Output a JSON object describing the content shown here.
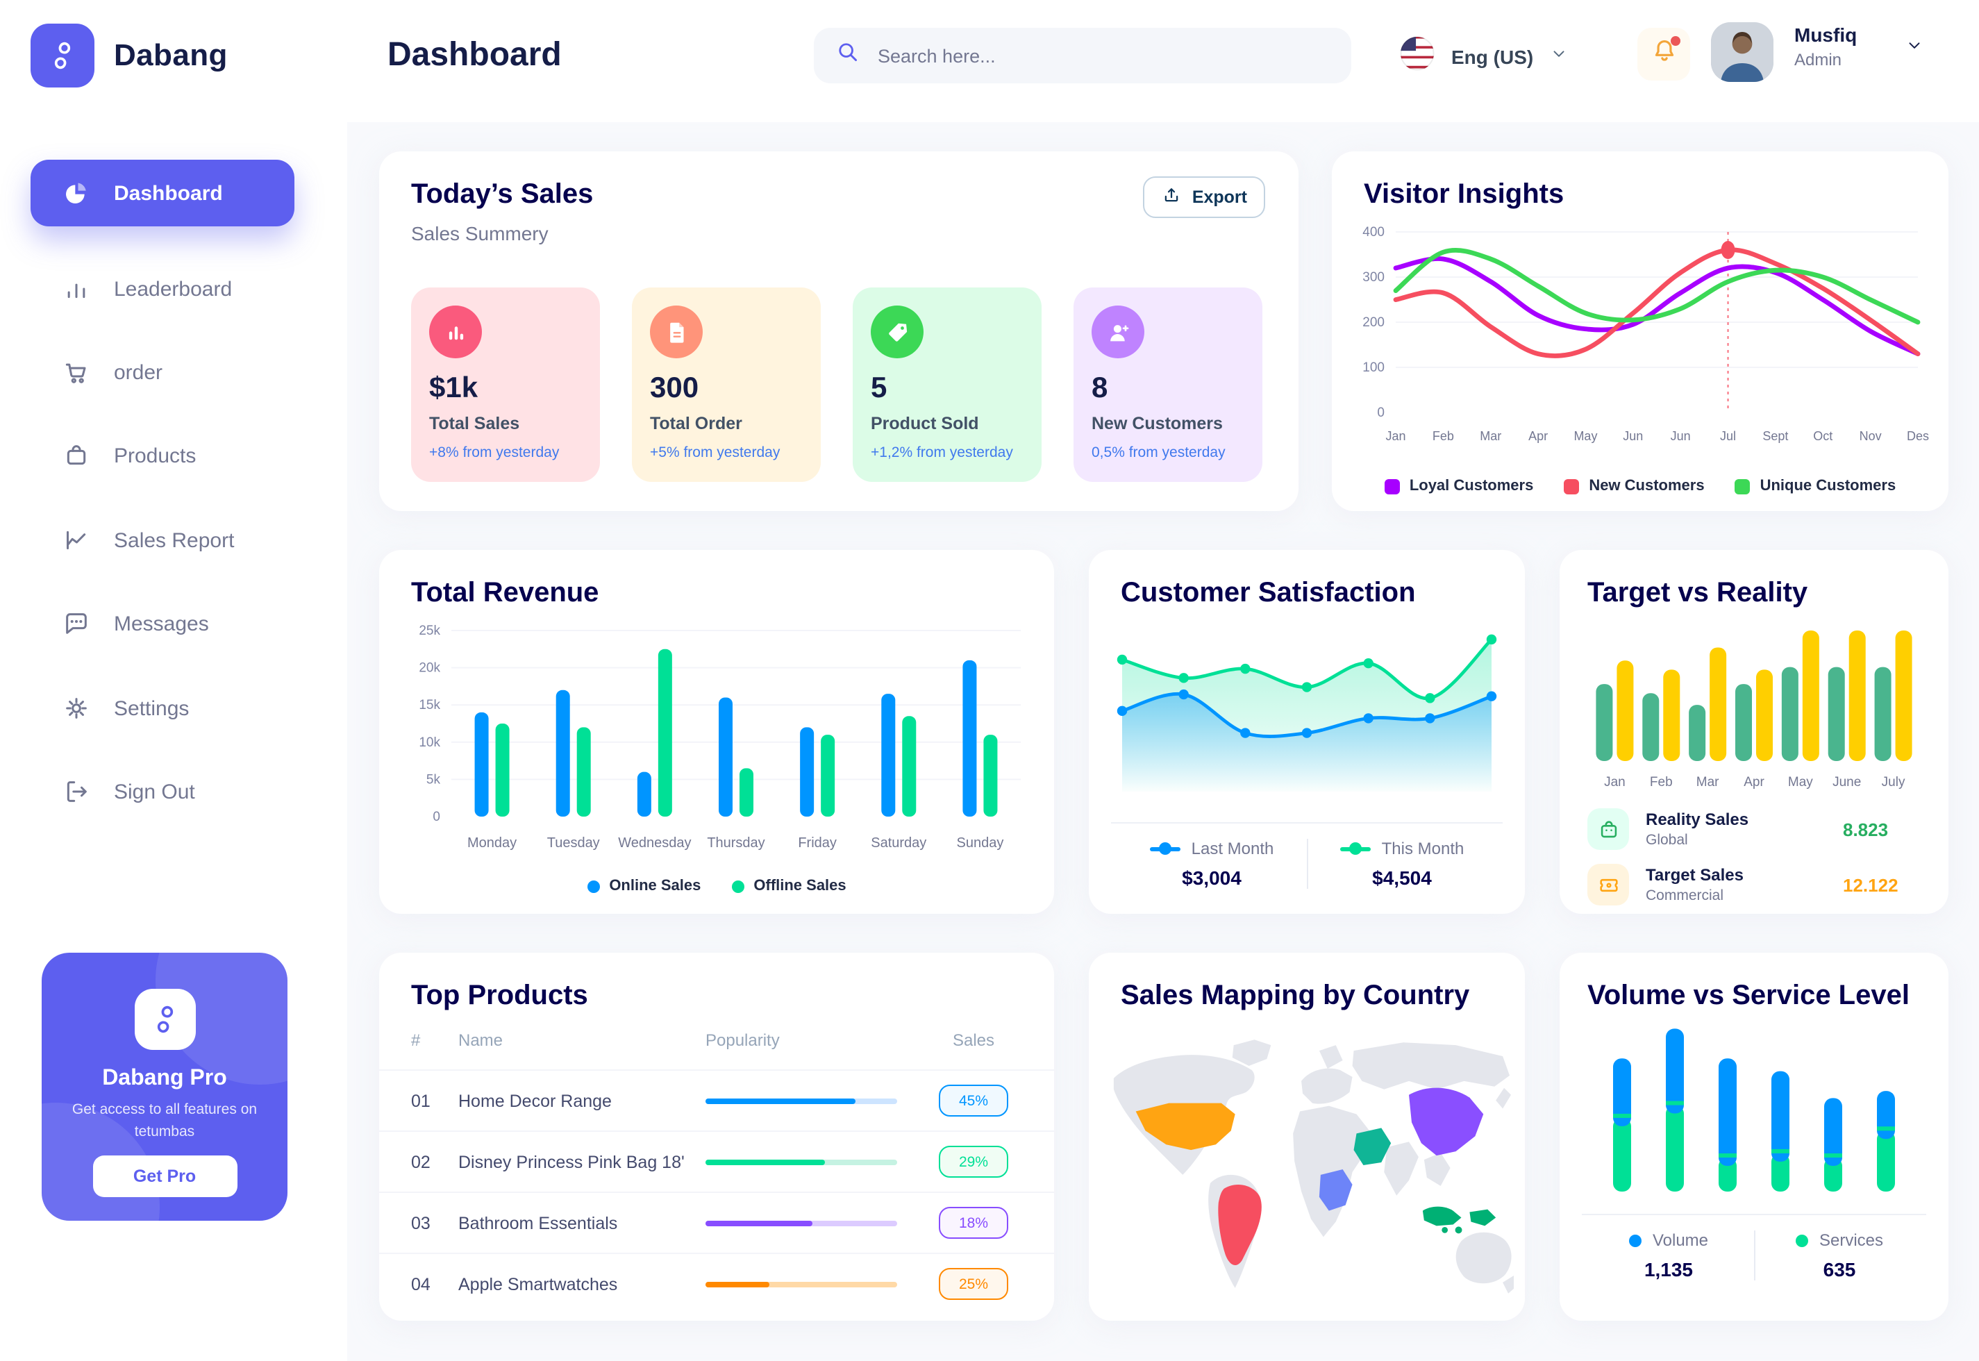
{
  "brand": {
    "name": "Dabang"
  },
  "colors": {
    "primary": "#5D5FEF",
    "title": "#05004E",
    "muted": "#737791",
    "blue": "#0095FF",
    "green": "#00E096"
  },
  "header": {
    "title": "Dashboard",
    "search": {
      "placeholder": "Search here...",
      "icon": "search-icon"
    },
    "language": {
      "label": "Eng (US)",
      "icon": "us-flag-icon"
    },
    "notification": {
      "icon": "bell-icon",
      "has_unread": true
    },
    "user": {
      "name": "Musfiq",
      "role": "Admin"
    }
  },
  "sidebar": {
    "items": [
      {
        "label": "Dashboard",
        "icon": "pie-chart-icon",
        "active": true
      },
      {
        "label": "Leaderboard",
        "icon": "bar-chart-icon",
        "active": false
      },
      {
        "label": "order",
        "icon": "cart-icon",
        "active": false
      },
      {
        "label": "Products",
        "icon": "bag-icon",
        "active": false
      },
      {
        "label": "Sales Report",
        "icon": "line-chart-icon",
        "active": false
      },
      {
        "label": "Messages",
        "icon": "message-icon",
        "active": false
      },
      {
        "label": "Settings",
        "icon": "gear-icon",
        "active": false
      },
      {
        "label": "Sign Out",
        "icon": "sign-out-icon",
        "active": false
      }
    ],
    "pro_card": {
      "title": "Dabang Pro",
      "description": "Get access to all features on tetumbas",
      "button_label": "Get Pro"
    }
  },
  "today_sales": {
    "title": "Today’s Sales",
    "subtitle": "Sales Summery",
    "export_label": "Export",
    "stats": [
      {
        "value": "$1k",
        "label": "Total Sales",
        "delta": "+8% from yesterday",
        "bg": "#FFE2E5",
        "icon_bg": "#FA5A7D",
        "icon": "sales-bars-icon"
      },
      {
        "value": "300",
        "label": "Total Order",
        "delta": "+5% from yesterday",
        "bg": "#FFF4DE",
        "icon_bg": "#FF947A",
        "icon": "order-file-icon"
      },
      {
        "value": "5",
        "label": "Product Sold",
        "delta": "+1,2% from yesterday",
        "bg": "#DCFCE7",
        "icon_bg": "#3CD856",
        "icon": "tag-icon"
      },
      {
        "value": "8",
        "label": "New Customers",
        "delta": "0,5% from yesterday",
        "bg": "#F3E8FF",
        "icon_bg": "#BF83FF",
        "icon": "new-customer-icon"
      }
    ]
  },
  "visitor_insights": {
    "title": "Visitor Insights",
    "chart_data": {
      "type": "line",
      "x": [
        "Jan",
        "Feb",
        "Mar",
        "Apr",
        "May",
        "Jun",
        "Jun",
        "Jul",
        "Sept",
        "Oct",
        "Nov",
        "Des"
      ],
      "ylim": [
        0,
        400
      ],
      "yticks": [
        0,
        100,
        200,
        300,
        400
      ],
      "series": [
        {
          "name": "Loyal Customers",
          "color": "#A700FF",
          "values": [
            320,
            340,
            290,
            215,
            185,
            195,
            265,
            320,
            310,
            250,
            180,
            130
          ]
        },
        {
          "name": "New Customers",
          "color": "#F64E60",
          "values": [
            250,
            265,
            190,
            130,
            140,
            220,
            310,
            360,
            330,
            275,
            205,
            130
          ]
        },
        {
          "name": "Unique Customers",
          "color": "#3CD856",
          "values": [
            270,
            355,
            340,
            280,
            220,
            205,
            230,
            290,
            315,
            300,
            250,
            200
          ]
        }
      ],
      "marker": {
        "series": "New Customers",
        "x_index": 7,
        "value": 360
      }
    }
  },
  "total_revenue": {
    "title": "Total Revenue",
    "chart_data": {
      "type": "bar",
      "categories": [
        "Monday",
        "Tuesday",
        "Wednesday",
        "Thursday",
        "Friday",
        "Saturday",
        "Sunday"
      ],
      "ylim": [
        0,
        25
      ],
      "ytick_labels": [
        "0",
        "5k",
        "10k",
        "15k",
        "20k",
        "25k"
      ],
      "series": [
        {
          "name": "Online Sales",
          "color": "#0095FF",
          "values": [
            14,
            17,
            6,
            16,
            12,
            16.5,
            21
          ]
        },
        {
          "name": "Offline Sales",
          "color": "#00E096",
          "values": [
            12.5,
            12,
            22.5,
            6.5,
            11,
            13.5,
            11
          ]
        }
      ]
    }
  },
  "customer_satisfaction": {
    "title": "Customer Satisfaction",
    "chart_data": {
      "type": "area",
      "series": [
        {
          "name": "Last Month",
          "color": "#0095FF",
          "total": "$3,004",
          "values": [
            44,
            53,
            32,
            32,
            40,
            40,
            52
          ]
        },
        {
          "name": "This Month",
          "color": "#00E096",
          "total": "$4,504",
          "values": [
            72,
            62,
            67,
            57,
            70,
            51,
            83
          ]
        }
      ]
    }
  },
  "target_vs_reality": {
    "title": "Target vs Reality",
    "chart_data": {
      "type": "bar",
      "categories": [
        "Jan",
        "Feb",
        "Mar",
        "Apr",
        "May",
        "June",
        "July"
      ],
      "ylim": [
        0,
        10
      ],
      "series": [
        {
          "name": "Reality Sales",
          "color": "#4AB58E",
          "values": [
            5.9,
            5.2,
            4.3,
            5.9,
            7.2,
            7.2,
            7.2
          ]
        },
        {
          "name": "Target Sales",
          "color": "#FFCF00",
          "values": [
            7.7,
            7.0,
            8.7,
            7.0,
            10,
            10,
            10
          ]
        }
      ]
    },
    "legend": [
      {
        "label": "Reality Sales",
        "sublabel": "Global",
        "value": "8.823",
        "value_color": "#27AE60",
        "icon": "bag-icon",
        "icon_bg": "#E2FFF3",
        "icon_color": "#27AE60"
      },
      {
        "label": "Target Sales",
        "sublabel": "Commercial",
        "value": "12.122",
        "value_color": "#FFA412",
        "icon": "ticket-icon",
        "icon_bg": "#FFF4DE",
        "icon_color": "#FFA412"
      }
    ]
  },
  "top_products": {
    "title": "Top Products",
    "columns": [
      "#",
      "Name",
      "Popularity",
      "Sales"
    ],
    "rows": [
      {
        "index": "01",
        "name": "Home Decor Range",
        "popularity": 78,
        "sales": "45%",
        "color": "#0095FF",
        "track": "#CDE4FF",
        "badge_bg": "#F0F9FF"
      },
      {
        "index": "02",
        "name": "Disney Princess Pink Bag 18'",
        "popularity": 62,
        "sales": "29%",
        "color": "#00E096",
        "track": "#C5F2E2",
        "badge_bg": "#F0FDF4"
      },
      {
        "index": "03",
        "name": "Bathroom Essentials",
        "popularity": 56,
        "sales": "18%",
        "color": "#884DFF",
        "track": "#DCCBFF",
        "badge_bg": "#FAF5FF"
      },
      {
        "index": "04",
        "name": "Apple Smartwatches",
        "popularity": 33,
        "sales": "25%",
        "color": "#FF8900",
        "track": "#FFD9A6",
        "badge_bg": "#FFF7ED"
      }
    ]
  },
  "sales_mapping": {
    "title": "Sales Mapping by Country",
    "countries": [
      {
        "name": "United States",
        "color": "#FFA412"
      },
      {
        "name": "Brazil",
        "color": "#F64E60"
      },
      {
        "name": "DR Congo",
        "color": "#6D84F8"
      },
      {
        "name": "Saudi Arabia",
        "color": "#10B596"
      },
      {
        "name": "China",
        "color": "#8A4FFF"
      },
      {
        "name": "Indonesia",
        "color": "#00B074"
      }
    ]
  },
  "volume_service": {
    "title": "Volume vs Service Level",
    "chart_data": {
      "type": "stacked-bar",
      "series": [
        {
          "name": "Volume",
          "color": "#0095FF",
          "total": "1,135",
          "values": [
            42,
            54,
            70,
            58,
            42,
            28
          ]
        },
        {
          "name": "Services",
          "color": "#00E096",
          "total": "635",
          "values": [
            52,
            61,
            24,
            27,
            24,
            43
          ]
        }
      ]
    }
  }
}
